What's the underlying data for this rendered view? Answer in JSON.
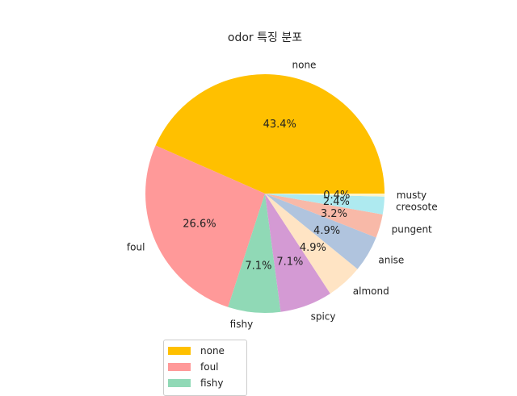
{
  "chart_data": {
    "type": "pie",
    "title": "odor 특징 분포",
    "categories": [
      "none",
      "foul",
      "fishy",
      "spicy",
      "almond",
      "anise",
      "pungent",
      "creosote",
      "musty"
    ],
    "values": [
      43.4,
      26.6,
      7.1,
      7.1,
      4.9,
      4.9,
      3.2,
      2.4,
      0.4
    ],
    "percent_labels": [
      "43.4%",
      "26.6%",
      "7.1%",
      "7.1%",
      "4.9%",
      "4.9%",
      "3.2%",
      "2.4%",
      "0.4%"
    ],
    "colors": [
      "#ffc000",
      "#ff9999",
      "#90d9b6",
      "#d49ad4",
      "#ffe4c4",
      "#b0c4de",
      "#f8b9a8",
      "#aeeaf0",
      "#fff5cc"
    ],
    "start_angle_deg": 0,
    "direction": "counterclockwise",
    "legend": {
      "placement": "bottom-left",
      "entries": [
        "none",
        "foul",
        "fishy"
      ]
    }
  }
}
